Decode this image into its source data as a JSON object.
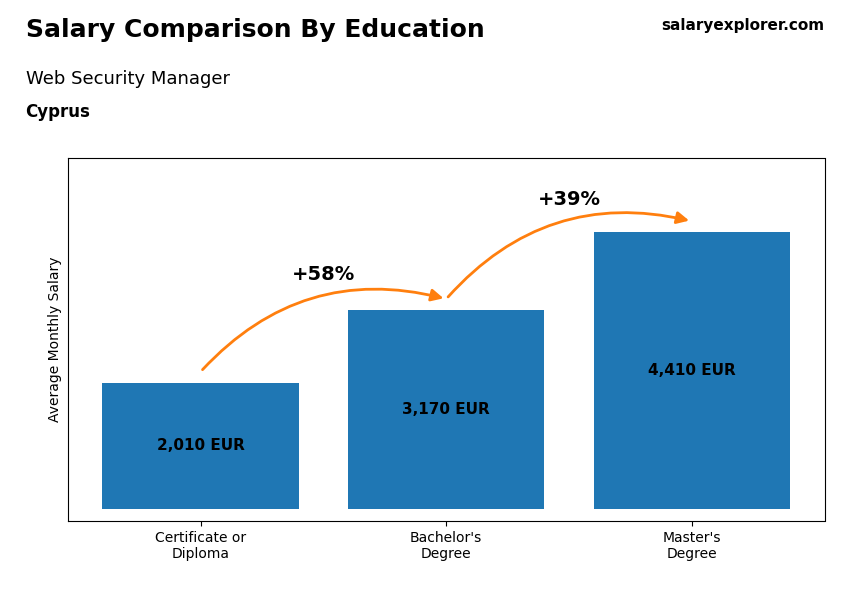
{
  "chart_data": {
    "type": "bar",
    "title": "Salary Comparison By Education",
    "subtitle": "Web Security Manager",
    "location": "Cyprus",
    "source": "salaryexplorer.com",
    "ylabel": "Average Monthly Salary",
    "categories": [
      "Certificate or\nDiploma",
      "Bachelor's\nDegree",
      "Master's\nDegree"
    ],
    "values": [
      2010,
      3170,
      4410
    ],
    "value_labels": [
      "2,010 EUR",
      "3,170 EUR",
      "4,410 EUR"
    ],
    "data_labels": true,
    "annotations": [
      "+58%",
      "+39%"
    ],
    "ylim": [
      -200,
      5600
    ],
    "tick_labels": "x"
  }
}
